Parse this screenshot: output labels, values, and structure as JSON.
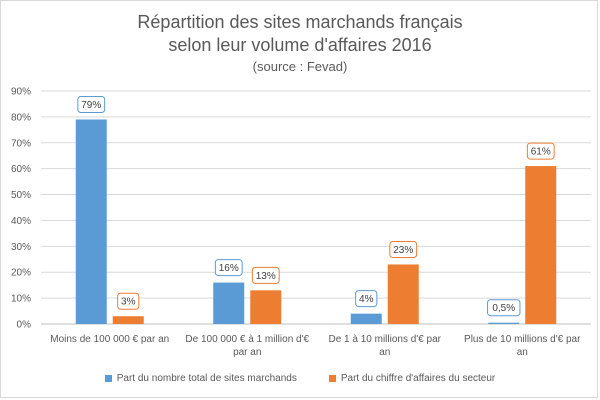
{
  "chart_data": {
    "type": "bar",
    "title": "Répartition des sites marchands français",
    "title_line2": "selon leur volume d'affaires 2016",
    "subtitle": "(source : Fevad)",
    "categories": [
      [
        "Moins de 100 000 € par an"
      ],
      [
        "De 100 000 € à 1 million d'€",
        "par an"
      ],
      [
        "De 1 à 10 millions d'€ par",
        "an"
      ],
      [
        "Plus de 10 millions d'€ par",
        "an"
      ]
    ],
    "series": [
      {
        "name": "Part du nombre total de sites marchands",
        "color": "#5b9bd5",
        "values": [
          79,
          16,
          4,
          0.5
        ],
        "labels": [
          "79%",
          "16%",
          "4%",
          "0,5%"
        ]
      },
      {
        "name": "Part du chiffre d'affaires du secteur",
        "color": "#ed7d31",
        "values": [
          3,
          13,
          23,
          61
        ],
        "labels": [
          "3%",
          "13%",
          "23%",
          "61%"
        ]
      }
    ],
    "ylim": [
      0,
      90
    ],
    "yticks": [
      "0%",
      "10%",
      "20%",
      "30%",
      "40%",
      "50%",
      "60%",
      "70%",
      "80%",
      "90%"
    ],
    "grid": true,
    "legend_position": "bottom"
  }
}
